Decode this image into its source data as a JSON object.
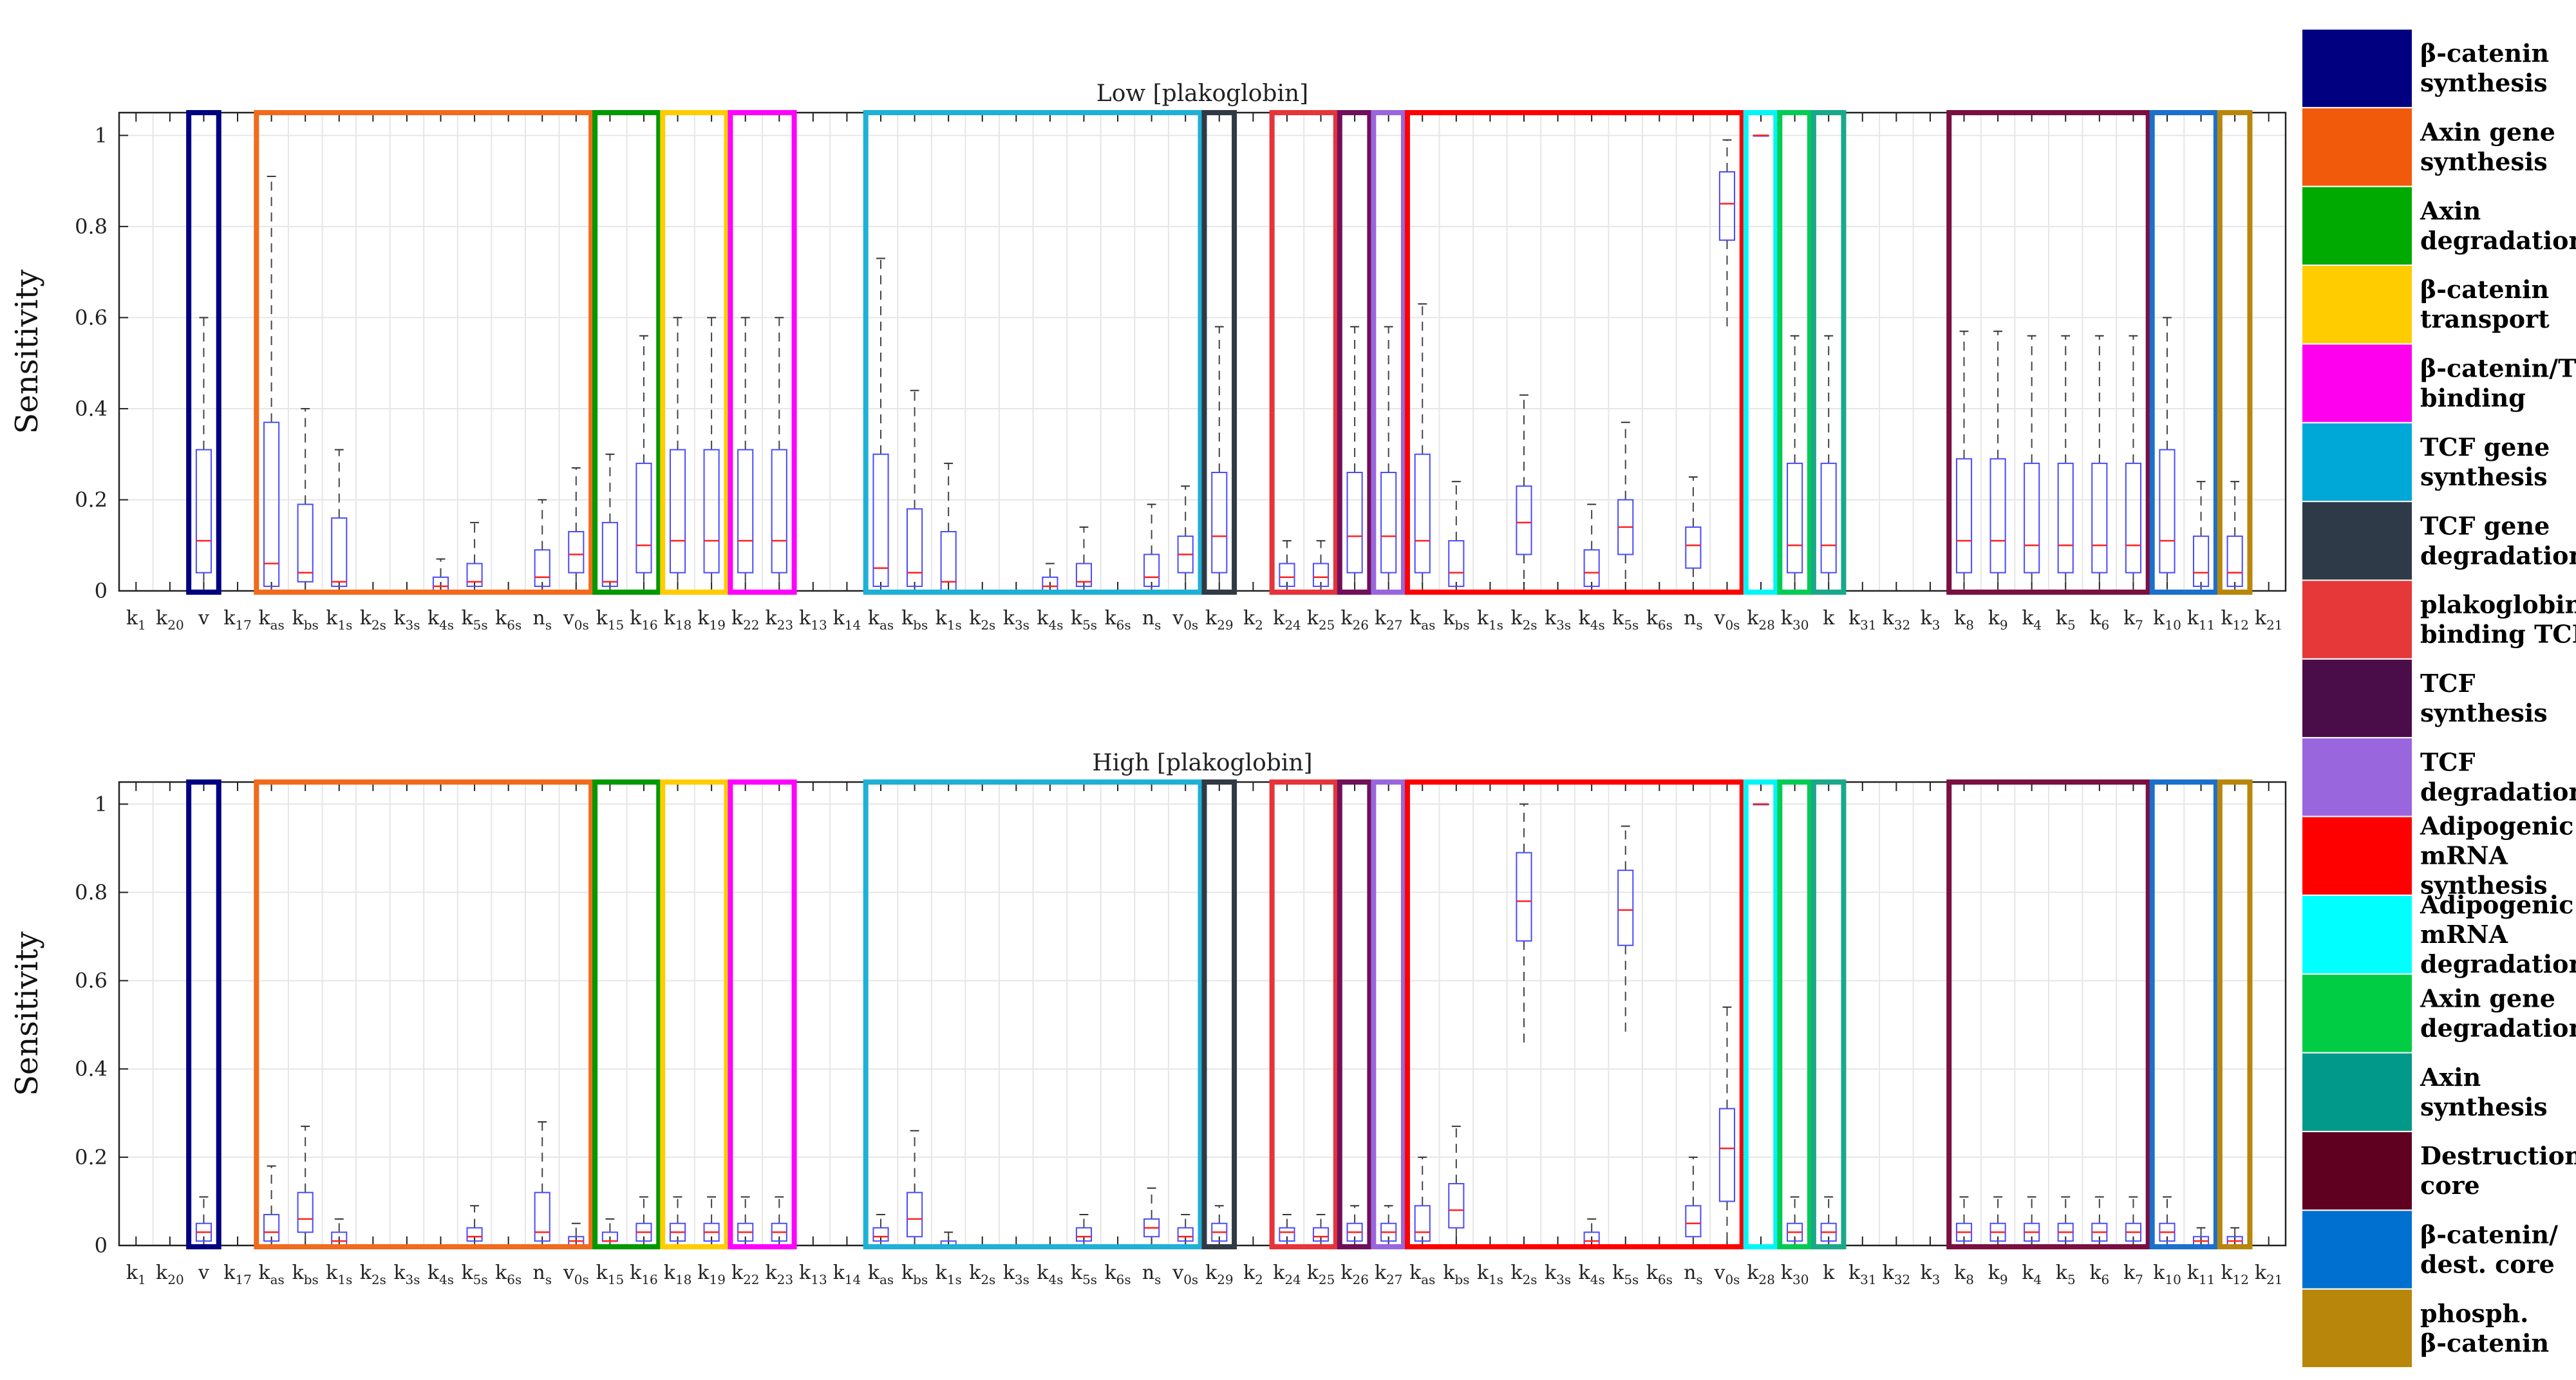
{
  "chart_data": {
    "type": "box",
    "ylabel": "Sensitivity",
    "ylim": [
      0,
      1.05
    ],
    "yticks": [
      "0",
      "0.2",
      "0.4",
      "0.6",
      "0.8",
      "1"
    ],
    "grid": true,
    "legend_position": "right",
    "categories": [
      {
        "b": "k",
        "s": "1"
      },
      {
        "b": "k",
        "s": "20"
      },
      {
        "b": "v",
        "s": ""
      },
      {
        "b": "k",
        "s": "17"
      },
      {
        "b": "k",
        "s": "as"
      },
      {
        "b": "k",
        "s": "bs"
      },
      {
        "b": "k",
        "s": "1s"
      },
      {
        "b": "k",
        "s": "2s"
      },
      {
        "b": "k",
        "s": "3s"
      },
      {
        "b": "k",
        "s": "4s"
      },
      {
        "b": "k",
        "s": "5s"
      },
      {
        "b": "k",
        "s": "6s"
      },
      {
        "b": "n",
        "s": "s"
      },
      {
        "b": "v",
        "s": "0s"
      },
      {
        "b": "k",
        "s": "15"
      },
      {
        "b": "k",
        "s": "16"
      },
      {
        "b": "k",
        "s": "18"
      },
      {
        "b": "k",
        "s": "19"
      },
      {
        "b": "k",
        "s": "22"
      },
      {
        "b": "k",
        "s": "23"
      },
      {
        "b": "k",
        "s": "13"
      },
      {
        "b": "k",
        "s": "14"
      },
      {
        "b": "k",
        "s": "as"
      },
      {
        "b": "k",
        "s": "bs"
      },
      {
        "b": "k",
        "s": "1s"
      },
      {
        "b": "k",
        "s": "2s"
      },
      {
        "b": "k",
        "s": "3s"
      },
      {
        "b": "k",
        "s": "4s"
      },
      {
        "b": "k",
        "s": "5s"
      },
      {
        "b": "k",
        "s": "6s"
      },
      {
        "b": "n",
        "s": "s"
      },
      {
        "b": "v",
        "s": "0s"
      },
      {
        "b": "k",
        "s": "29"
      },
      {
        "b": "k",
        "s": "2"
      },
      {
        "b": "k",
        "s": "24"
      },
      {
        "b": "k",
        "s": "25"
      },
      {
        "b": "k",
        "s": "26"
      },
      {
        "b": "k",
        "s": "27"
      },
      {
        "b": "k",
        "s": "as"
      },
      {
        "b": "k",
        "s": "bs"
      },
      {
        "b": "k",
        "s": "1s"
      },
      {
        "b": "k",
        "s": "2s"
      },
      {
        "b": "k",
        "s": "3s"
      },
      {
        "b": "k",
        "s": "4s"
      },
      {
        "b": "k",
        "s": "5s"
      },
      {
        "b": "k",
        "s": "6s"
      },
      {
        "b": "n",
        "s": "s"
      },
      {
        "b": "v",
        "s": "0s"
      },
      {
        "b": "k",
        "s": "28"
      },
      {
        "b": "k",
        "s": "30"
      },
      {
        "b": "k",
        "s": ""
      },
      {
        "b": "k",
        "s": "31"
      },
      {
        "b": "k",
        "s": "32"
      },
      {
        "b": "k",
        "s": "3"
      },
      {
        "b": "k",
        "s": "8"
      },
      {
        "b": "k",
        "s": "9"
      },
      {
        "b": "k",
        "s": "4"
      },
      {
        "b": "k",
        "s": "5"
      },
      {
        "b": "k",
        "s": "6"
      },
      {
        "b": "k",
        "s": "7"
      },
      {
        "b": "k",
        "s": "10"
      },
      {
        "b": "k",
        "s": "11"
      },
      {
        "b": "k",
        "s": "12"
      },
      {
        "b": "k",
        "s": "21"
      }
    ],
    "panels": [
      {
        "title": "Low [plakoglobin]",
        "stats": [
          null,
          null,
          [
            0,
            0.04,
            0.11,
            0.31,
            0.6
          ],
          null,
          [
            0,
            0.01,
            0.06,
            0.37,
            0.91
          ],
          [
            0,
            0.02,
            0.04,
            0.19,
            0.4
          ],
          [
            0,
            0.01,
            0.02,
            0.16,
            0.31
          ],
          null,
          null,
          [
            0,
            0,
            0.01,
            0.03,
            0.07
          ],
          [
            0,
            0.01,
            0.02,
            0.06,
            0.15
          ],
          null,
          [
            0,
            0.01,
            0.03,
            0.09,
            0.2
          ],
          [
            0,
            0.04,
            0.08,
            0.13,
            0.27
          ],
          [
            0,
            0.01,
            0.02,
            0.15,
            0.3
          ],
          [
            0,
            0.04,
            0.1,
            0.28,
            0.56
          ],
          [
            0,
            0.04,
            0.11,
            0.31,
            0.6
          ],
          [
            0,
            0.04,
            0.11,
            0.31,
            0.6
          ],
          [
            0,
            0.04,
            0.11,
            0.31,
            0.6
          ],
          [
            0,
            0.04,
            0.11,
            0.31,
            0.6
          ],
          null,
          null,
          [
            0,
            0.01,
            0.05,
            0.3,
            0.73
          ],
          [
            0,
            0.01,
            0.04,
            0.18,
            0.44
          ],
          [
            0,
            0,
            0.02,
            0.13,
            0.28
          ],
          null,
          null,
          [
            0,
            0,
            0.01,
            0.03,
            0.06
          ],
          [
            0,
            0.01,
            0.02,
            0.06,
            0.14
          ],
          null,
          [
            0,
            0.01,
            0.03,
            0.08,
            0.19
          ],
          [
            0,
            0.04,
            0.08,
            0.12,
            0.23
          ],
          [
            0,
            0.04,
            0.12,
            0.26,
            0.58
          ],
          null,
          [
            0,
            0.01,
            0.03,
            0.06,
            0.11
          ],
          [
            0,
            0.01,
            0.03,
            0.06,
            0.11
          ],
          [
            0,
            0.04,
            0.12,
            0.26,
            0.58
          ],
          [
            0,
            0.04,
            0.12,
            0.26,
            0.58
          ],
          [
            0,
            0.04,
            0.11,
            0.3,
            0.63
          ],
          [
            0,
            0.01,
            0.04,
            0.11,
            0.24
          ],
          null,
          [
            0.01,
            0.08,
            0.15,
            0.23,
            0.43
          ],
          null,
          [
            0,
            0.01,
            0.04,
            0.09,
            0.19
          ],
          [
            0.02,
            0.08,
            0.14,
            0.2,
            0.37
          ],
          null,
          [
            0.01,
            0.05,
            0.1,
            0.14,
            0.25
          ],
          [
            0.57,
            0.77,
            0.85,
            0.92,
            0.99
          ],
          [
            1,
            1,
            1,
            1,
            1
          ],
          [
            0,
            0.04,
            0.1,
            0.28,
            0.56
          ],
          [
            0,
            0.04,
            0.1,
            0.28,
            0.56
          ],
          null,
          null,
          null,
          [
            0,
            0.04,
            0.11,
            0.29,
            0.57
          ],
          [
            0,
            0.04,
            0.11,
            0.29,
            0.57
          ],
          [
            0,
            0.04,
            0.1,
            0.28,
            0.56
          ],
          [
            0,
            0.04,
            0.1,
            0.28,
            0.56
          ],
          [
            0,
            0.04,
            0.1,
            0.28,
            0.56
          ],
          [
            0,
            0.04,
            0.1,
            0.28,
            0.56
          ],
          [
            0,
            0.04,
            0.11,
            0.31,
            0.6
          ],
          [
            0,
            0.01,
            0.04,
            0.12,
            0.24
          ],
          [
            0,
            0.01,
            0.04,
            0.12,
            0.24
          ],
          null
        ]
      },
      {
        "title": "High [plakoglobin]",
        "stats": [
          null,
          null,
          [
            0,
            0.01,
            0.03,
            0.05,
            0.11
          ],
          null,
          [
            0,
            0.01,
            0.03,
            0.07,
            0.18
          ],
          [
            0,
            0.03,
            0.06,
            0.12,
            0.27
          ],
          [
            0,
            0,
            0.01,
            0.03,
            0.06
          ],
          null,
          null,
          null,
          [
            0,
            0.01,
            0.02,
            0.04,
            0.09
          ],
          null,
          [
            0,
            0.01,
            0.03,
            0.12,
            0.28
          ],
          [
            0,
            0,
            0.01,
            0.02,
            0.05
          ],
          [
            0,
            0.01,
            0.01,
            0.03,
            0.06
          ],
          [
            0,
            0.01,
            0.03,
            0.05,
            0.11
          ],
          [
            0,
            0.01,
            0.03,
            0.05,
            0.11
          ],
          [
            0,
            0.01,
            0.03,
            0.05,
            0.11
          ],
          [
            0,
            0.01,
            0.03,
            0.05,
            0.11
          ],
          [
            0,
            0.01,
            0.03,
            0.05,
            0.11
          ],
          null,
          null,
          [
            0,
            0.01,
            0.02,
            0.04,
            0.07
          ],
          [
            0,
            0.02,
            0.06,
            0.12,
            0.26
          ],
          [
            0,
            0,
            0,
            0.01,
            0.03
          ],
          null,
          null,
          null,
          [
            0,
            0.01,
            0.02,
            0.04,
            0.07
          ],
          null,
          [
            0,
            0.02,
            0.04,
            0.06,
            0.13
          ],
          [
            0,
            0.01,
            0.02,
            0.04,
            0.07
          ],
          [
            0,
            0.01,
            0.03,
            0.05,
            0.09
          ],
          null,
          [
            0,
            0.01,
            0.03,
            0.04,
            0.07
          ],
          [
            0,
            0.01,
            0.02,
            0.04,
            0.07
          ],
          [
            0,
            0.01,
            0.03,
            0.05,
            0.09
          ],
          [
            0,
            0.01,
            0.03,
            0.05,
            0.09
          ],
          [
            0,
            0.01,
            0.03,
            0.09,
            0.2
          ],
          [
            0.01,
            0.04,
            0.08,
            0.14,
            0.27
          ],
          null,
          [
            0.46,
            0.69,
            0.78,
            0.89,
            1.0
          ],
          null,
          [
            0,
            0,
            0.01,
            0.03,
            0.06
          ],
          [
            0.48,
            0.68,
            0.76,
            0.85,
            0.95
          ],
          null,
          [
            0,
            0.02,
            0.05,
            0.09,
            0.2
          ],
          [
            0,
            0.1,
            0.22,
            0.31,
            0.54
          ],
          [
            1,
            1,
            1,
            1,
            1
          ],
          [
            0,
            0.01,
            0.03,
            0.05,
            0.11
          ],
          [
            0,
            0.01,
            0.03,
            0.05,
            0.11
          ],
          null,
          null,
          null,
          [
            0,
            0.01,
            0.03,
            0.05,
            0.11
          ],
          [
            0,
            0.01,
            0.03,
            0.05,
            0.11
          ],
          [
            0,
            0.01,
            0.03,
            0.05,
            0.11
          ],
          [
            0,
            0.01,
            0.03,
            0.05,
            0.11
          ],
          [
            0,
            0.01,
            0.03,
            0.05,
            0.11
          ],
          [
            0,
            0.01,
            0.03,
            0.05,
            0.11
          ],
          [
            0,
            0.01,
            0.03,
            0.05,
            0.11
          ],
          [
            0,
            0,
            0.01,
            0.02,
            0.04
          ],
          [
            0,
            0,
            0.01,
            0.02,
            0.04
          ],
          null
        ]
      }
    ],
    "group_boxes": [
      {
        "first": 2,
        "last": 2,
        "color": "#000080"
      },
      {
        "first": 4,
        "last": 13,
        "color": "#f26a1b"
      },
      {
        "first": 14,
        "last": 15,
        "color": "#009900"
      },
      {
        "first": 16,
        "last": 17,
        "color": "#ffcc00"
      },
      {
        "first": 18,
        "last": 19,
        "color": "#ff00ff"
      },
      {
        "first": 22,
        "last": 31,
        "color": "#1fb0d6"
      },
      {
        "first": 32,
        "last": 32,
        "color": "#2f3a45"
      },
      {
        "first": 34,
        "last": 35,
        "color": "#e6343a"
      },
      {
        "first": 36,
        "last": 36,
        "color": "#70105a"
      },
      {
        "first": 37,
        "last": 37,
        "color": "#9966dd"
      },
      {
        "first": 38,
        "last": 47,
        "color": "#ff0000"
      },
      {
        "first": 48,
        "last": 48,
        "color": "#00f5f5"
      },
      {
        "first": 49,
        "last": 49,
        "color": "#00cc55"
      },
      {
        "first": 50,
        "last": 50,
        "color": "#1aa88a"
      },
      {
        "first": 54,
        "last": 59,
        "color": "#7a1040"
      },
      {
        "first": 60,
        "last": 61,
        "color": "#1a70cc"
      },
      {
        "first": 62,
        "last": 62,
        "color": "#b8860b"
      }
    ],
    "legend": [
      {
        "label": "β-catenin synthesis",
        "lines": [
          "β-catenin",
          "synthesis"
        ],
        "color": "#000080"
      },
      {
        "label": "Axin gene synthesis",
        "lines": [
          "Axin gene",
          "synthesis"
        ],
        "color": "#f05a0a"
      },
      {
        "label": "Axin degradation",
        "lines": [
          "Axin",
          "degradation"
        ],
        "color": "#00aa00"
      },
      {
        "label": "β-catenin transport",
        "lines": [
          "β-catenin",
          "transport"
        ],
        "color": "#ffcc00"
      },
      {
        "label": "β-catenin/TCF binding",
        "lines": [
          "β-catenin/TCF",
          "binding"
        ],
        "color": "#ff00ee"
      },
      {
        "label": "TCF gene synthesis",
        "lines": [
          "TCF gene",
          "synthesis"
        ],
        "color": "#00a8d8"
      },
      {
        "label": "TCF gene degradation",
        "lines": [
          "TCF gene",
          "degradation"
        ],
        "color": "#2e3a47"
      },
      {
        "label": "plakoglobin binding TCF",
        "lines": [
          "plakoglobin",
          "binding TCF"
        ],
        "color": "#e63838"
      },
      {
        "label": "TCF synthesis",
        "lines": [
          "TCF",
          "synthesis"
        ],
        "color": "#4a0d4a"
      },
      {
        "label": "TCF degradation",
        "lines": [
          "TCF",
          "degradation"
        ],
        "color": "#9966dd"
      },
      {
        "label": "Adipogenic mRNA synthesis",
        "lines": [
          "Adipogenic",
          "mRNA",
          "synthesis"
        ],
        "color": "#ff0000"
      },
      {
        "label": "Adipogenic mRNA degradation",
        "lines": [
          "Adipogenic",
          "mRNA",
          "degradation"
        ],
        "color": "#00ffff"
      },
      {
        "label": "Axin gene degradation",
        "lines": [
          "Axin gene",
          "degradation"
        ],
        "color": "#00cc44"
      },
      {
        "label": "Axin synthesis",
        "lines": [
          "Axin",
          "synthesis"
        ],
        "color": "#00998a"
      },
      {
        "label": "Destruction core",
        "lines": [
          "Destruction",
          "core"
        ],
        "color": "#600020"
      },
      {
        "label": "β-catenin/ dest. core",
        "lines": [
          "β-catenin/",
          "dest. core"
        ],
        "color": "#0070d0"
      },
      {
        "label": "phosph. β-catenin",
        "lines": [
          "phosph.",
          "β-catenin"
        ],
        "color": "#b8860b"
      }
    ]
  }
}
